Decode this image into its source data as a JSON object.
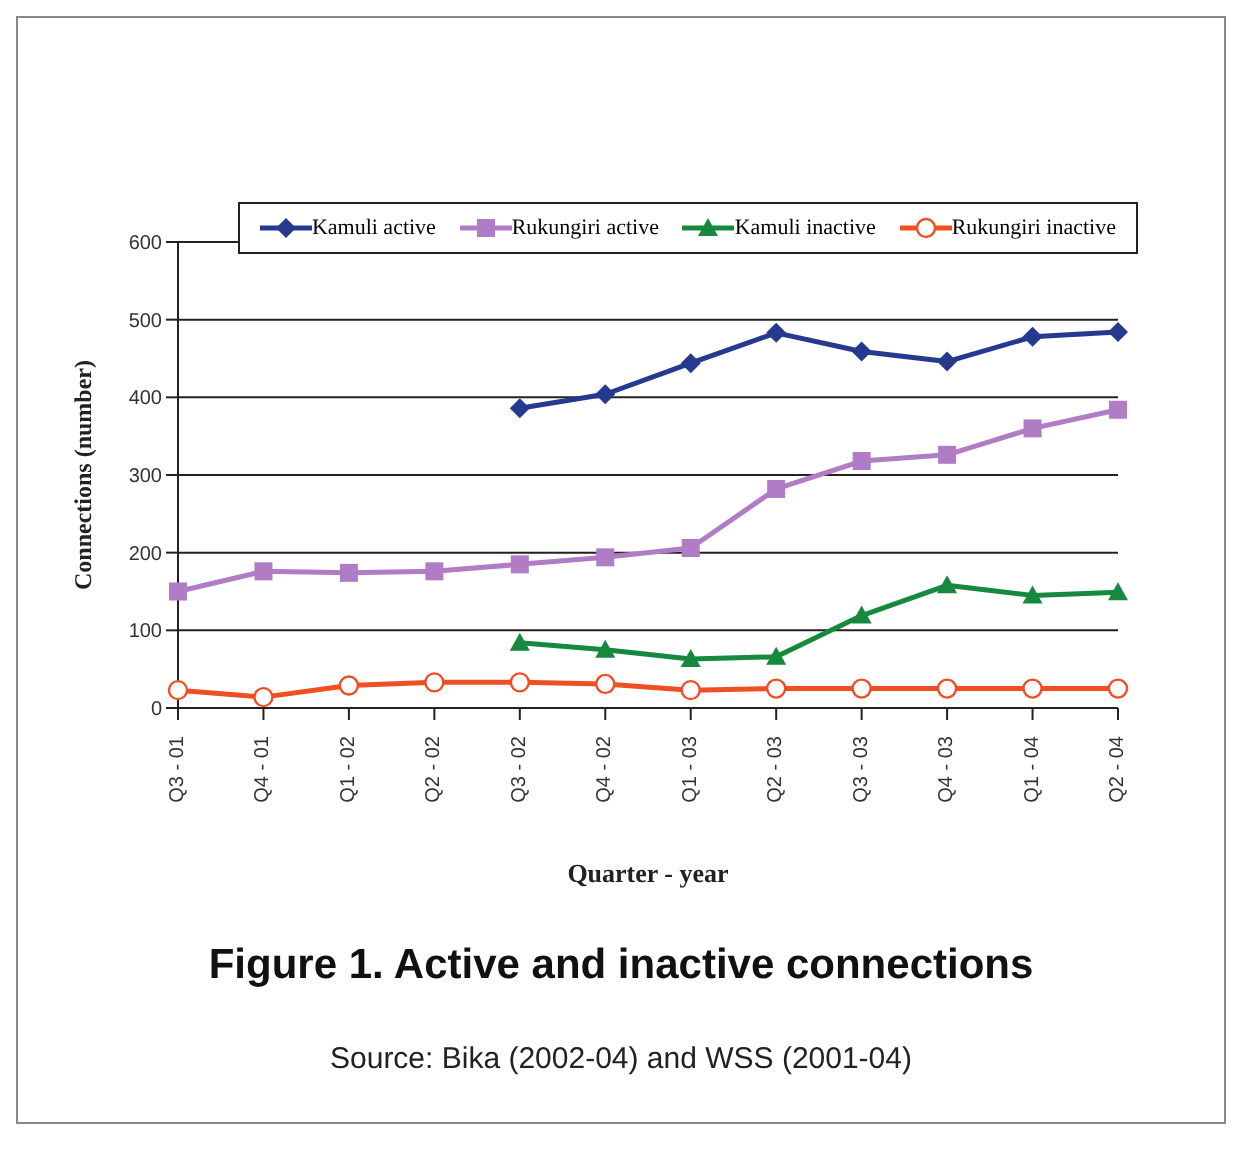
{
  "chart_data": {
    "type": "line",
    "title": "Figure 1. Active and inactive connections",
    "xlabel": "Quarter - year",
    "ylabel": "Connections (number)",
    "annotations": [
      "Source: Bika (2002-04) and WSS (2001-04)"
    ],
    "categories": [
      "Q3 - 01",
      "Q4 - 01",
      "Q1 - 02",
      "Q2 - 02",
      "Q3 - 02",
      "Q4 - 02",
      "Q1 - 03",
      "Q2 - 03",
      "Q3 - 03",
      "Q4 - 03",
      "Q1 - 04",
      "Q2 - 04"
    ],
    "series": [
      {
        "name": "Kamuli active",
        "color": "#253a8e",
        "marker": "diamond",
        "values": [
          null,
          null,
          null,
          null,
          386,
          404,
          444,
          483,
          459,
          446,
          478,
          484
        ]
      },
      {
        "name": "Rukungiri active",
        "color": "#b07cc6",
        "marker": "square",
        "values": [
          150,
          176,
          174,
          176,
          185,
          194,
          206,
          282,
          318,
          326,
          360,
          384
        ]
      },
      {
        "name": "Kamuli inactive",
        "color": "#16893f",
        "marker": "triangle",
        "values": [
          null,
          null,
          null,
          null,
          84,
          75,
          63,
          66,
          119,
          158,
          145,
          149
        ]
      },
      {
        "name": "Rukungiri inactive",
        "color": "#f04e23",
        "marker": "circle",
        "values": [
          23,
          14,
          29,
          33,
          33,
          31,
          23,
          25,
          25,
          25,
          25,
          25
        ]
      }
    ],
    "ylim": [
      0,
      600
    ],
    "yticks": [
      0,
      100,
      200,
      300,
      400,
      500,
      600
    ],
    "grid": "y",
    "legend": "top"
  }
}
